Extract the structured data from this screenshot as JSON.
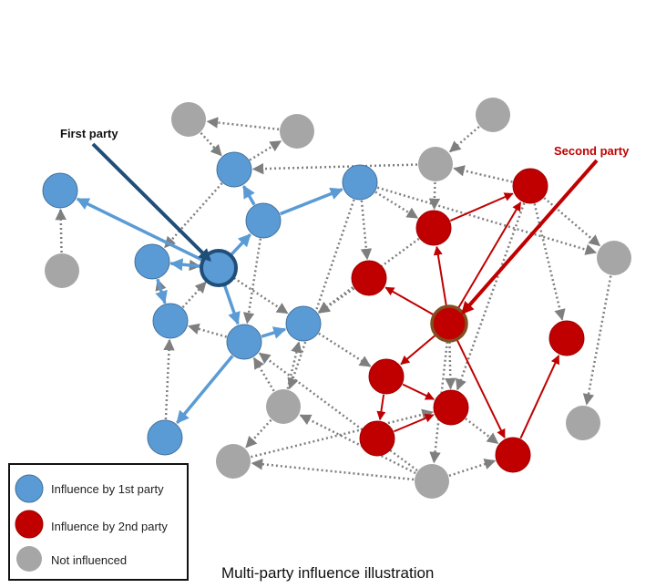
{
  "labels": {
    "first_party": "First party",
    "second_party": "Second party"
  },
  "legend": {
    "first": "Influence by 1st party",
    "second": "Influence by 2nd party",
    "none": "Not influenced"
  },
  "caption": "Multi-party influence illustration",
  "colors": {
    "blue_fill": "#5b9bd5",
    "blue_stroke": "#41719c",
    "blue_edge": "#5b9bd5",
    "first_pointer": "#1f4e79",
    "red_fill": "#c00000",
    "red_stroke": "#a00000",
    "red_edge": "#c00000",
    "second_label": "#c00000",
    "gray_fill": "#a6a6a6",
    "gray_edge": "#7f7f7f"
  }
}
